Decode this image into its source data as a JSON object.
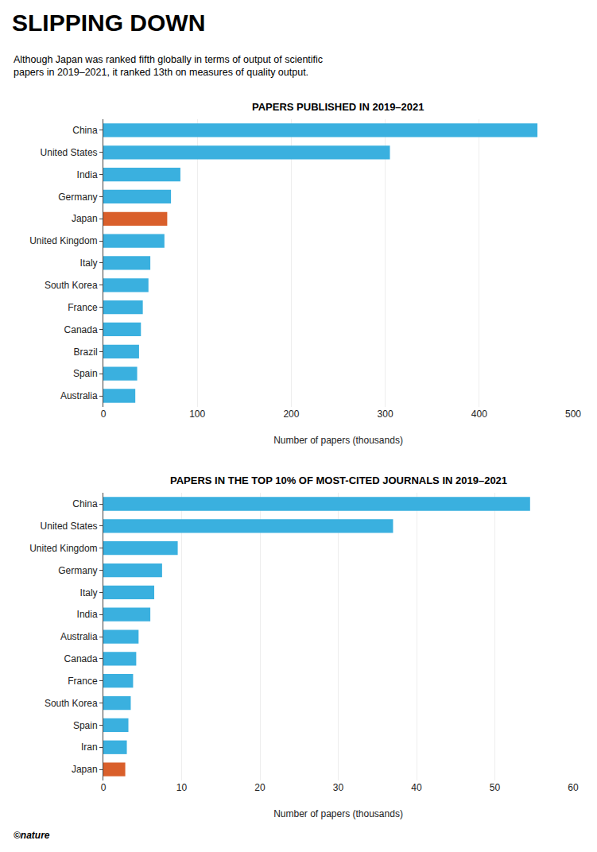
{
  "title": "SLIPPING DOWN",
  "subtitle": [
    "Although Japan was ranked fifth globally in terms of output of scientific",
    "papers in 2019–2021, it ranked 13th on measures of quality output."
  ],
  "annotations": [
    "©nature"
  ],
  "chart_data": [
    {
      "type": "bar",
      "orientation": "horizontal",
      "title": "PAPERS PUBLISHED IN 2019–2021",
      "categories": [
        "China",
        "United States",
        "India",
        "Germany",
        "Japan",
        "United Kingdom",
        "Italy",
        "South Korea",
        "France",
        "Canada",
        "Brazil",
        "Spain",
        "Australia"
      ],
      "values": [
        462,
        305,
        82,
        72,
        68,
        65,
        50,
        48,
        42,
        40,
        38,
        36,
        34
      ],
      "colors": [
        "#3ab0df",
        "#3ab0df",
        "#3ab0df",
        "#3ab0df",
        "#d95f2b",
        "#3ab0df",
        "#3ab0df",
        "#3ab0df",
        "#3ab0df",
        "#3ab0df",
        "#3ab0df",
        "#3ab0df",
        "#3ab0df"
      ],
      "xlim": [
        0,
        500
      ],
      "xticks": [
        0,
        100,
        200,
        300,
        400,
        500
      ],
      "xlabel": "Number of papers (thousands)",
      "grid": true
    },
    {
      "type": "bar",
      "orientation": "horizontal",
      "title": "PAPERS IN THE TOP 10% OF MOST-CITED JOURNALS IN 2019–2021",
      "categories": [
        "China",
        "United States",
        "United Kingdom",
        "Germany",
        "Italy",
        "India",
        "Australia",
        "Canada",
        "France",
        "South Korea",
        "Spain",
        "Iran",
        "Japan"
      ],
      "values": [
        54.5,
        37.0,
        9.5,
        7.5,
        6.5,
        6.0,
        4.5,
        4.2,
        3.8,
        3.5,
        3.2,
        3.0,
        2.8
      ],
      "colors": [
        "#3ab0df",
        "#3ab0df",
        "#3ab0df",
        "#3ab0df",
        "#3ab0df",
        "#3ab0df",
        "#3ab0df",
        "#3ab0df",
        "#3ab0df",
        "#3ab0df",
        "#3ab0df",
        "#3ab0df",
        "#d95f2b"
      ],
      "xlim": [
        0,
        60
      ],
      "xticks": [
        0,
        10,
        20,
        30,
        40,
        50,
        60
      ],
      "xlabel": "Number of papers (thousands)",
      "grid": true
    }
  ]
}
